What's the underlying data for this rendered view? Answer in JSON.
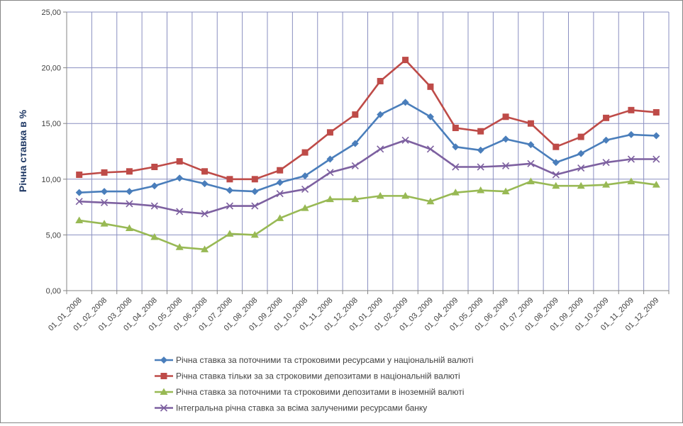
{
  "chart_data": {
    "type": "line",
    "title": "",
    "xlabel": "",
    "ylabel": "Річна ставка в %",
    "ylim": [
      0,
      25
    ],
    "yticks": [
      "0,00",
      "5,00",
      "10,00",
      "15,00",
      "20,00",
      "25,00"
    ],
    "ytick_values": [
      0,
      5,
      10,
      15,
      20,
      25
    ],
    "grid": true,
    "legend_position": "bottom",
    "categories": [
      "01_01_2008",
      "01_02_2008",
      "01_03_2008",
      "01_04_2008",
      "01_05_2008",
      "01_06_2008",
      "01_07_2008",
      "01_08_2008",
      "01_09_2008",
      "01_10_2008",
      "01_11_2008",
      "01_12_2008",
      "01_01_2009",
      "01_02_2009",
      "01_03_2009",
      "01_04_2009",
      "01_05_2009",
      "01_06_2009",
      "01_07_2009",
      "01_08_2009",
      "01_09_2009",
      "01_10_2009",
      "01_11_2009",
      "01_12_2009"
    ],
    "series": [
      {
        "name": "Річна ставка за поточними та строковими ресурсами у національній валюті",
        "color": "#4a7ebb",
        "marker": "diamond",
        "values": [
          8.8,
          8.9,
          8.9,
          9.4,
          10.1,
          9.6,
          9.0,
          8.9,
          9.7,
          10.3,
          11.8,
          13.2,
          15.8,
          16.9,
          15.6,
          12.9,
          12.6,
          13.6,
          13.1,
          11.5,
          12.3,
          13.5,
          14.0,
          13.9
        ]
      },
      {
        "name": "Річна ставка тільки за за строковими депозитами в національній валюті",
        "color": "#be4b48",
        "marker": "square",
        "values": [
          10.4,
          10.6,
          10.7,
          11.1,
          11.6,
          10.7,
          10.0,
          10.0,
          10.8,
          12.4,
          14.2,
          15.8,
          18.8,
          20.7,
          18.3,
          14.6,
          14.3,
          15.6,
          15.0,
          12.9,
          13.8,
          15.5,
          16.2,
          16.0
        ]
      },
      {
        "name": "Річна ставка за поточними та строковими депозитами в іноземній валюті",
        "color": "#98b954",
        "marker": "triangle",
        "values": [
          6.3,
          6.0,
          5.6,
          4.8,
          3.9,
          3.7,
          5.1,
          5.0,
          6.5,
          7.4,
          8.2,
          8.2,
          8.5,
          8.5,
          8.0,
          8.8,
          9.0,
          8.9,
          9.8,
          9.4,
          9.4,
          9.5,
          9.8,
          9.5
        ]
      },
      {
        "name": "Інтегральна річна ставка за всіма залученими ресурсами банку",
        "color": "#7d60a0",
        "marker": "cross",
        "values": [
          8.0,
          7.9,
          7.8,
          7.6,
          7.1,
          6.9,
          7.6,
          7.6,
          8.7,
          9.1,
          10.6,
          11.2,
          12.7,
          13.5,
          12.7,
          11.1,
          11.1,
          11.2,
          11.4,
          10.4,
          11.0,
          11.5,
          11.8,
          11.8
        ]
      }
    ]
  }
}
